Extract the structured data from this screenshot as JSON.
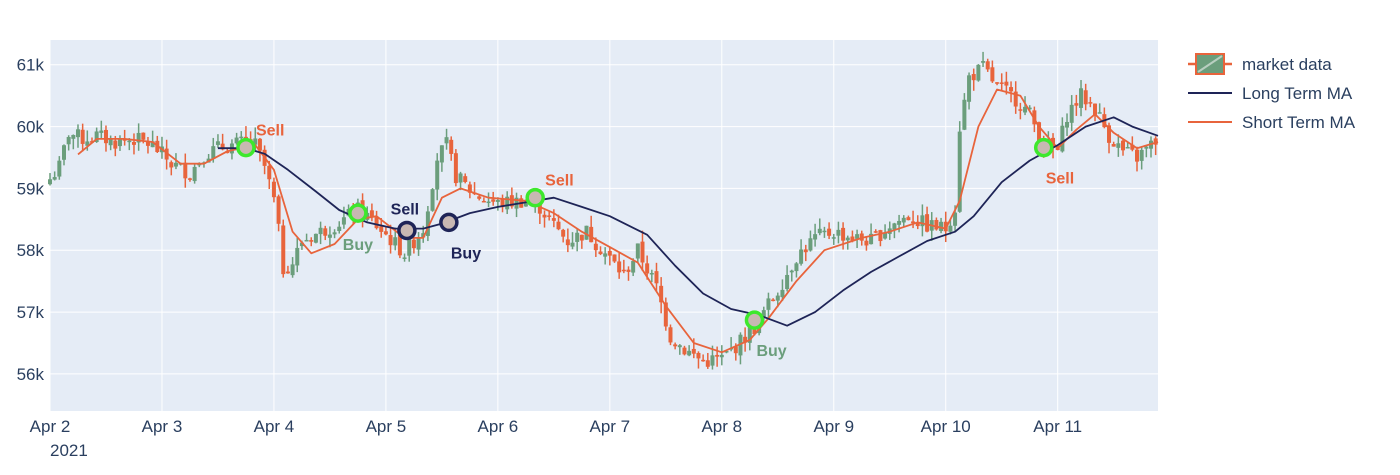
{
  "chart_data": {
    "type": "candlestick",
    "title": "",
    "xlabel": "",
    "ylabel": "",
    "year_label": "2021",
    "x_range": [
      "2021-04-02T00:00",
      "2021-04-11T21:30"
    ],
    "y_range": [
      55400,
      61400
    ],
    "grid": true,
    "legend_position": "top-right",
    "x_ticks": [
      {
        "t": "2021-04-02T00:00",
        "label": "Apr 2"
      },
      {
        "t": "2021-04-03T00:00",
        "label": "Apr 3"
      },
      {
        "t": "2021-04-04T00:00",
        "label": "Apr 4"
      },
      {
        "t": "2021-04-05T00:00",
        "label": "Apr 5"
      },
      {
        "t": "2021-04-06T00:00",
        "label": "Apr 6"
      },
      {
        "t": "2021-04-07T00:00",
        "label": "Apr 7"
      },
      {
        "t": "2021-04-08T00:00",
        "label": "Apr 8"
      },
      {
        "t": "2021-04-09T00:00",
        "label": "Apr 9"
      },
      {
        "t": "2021-04-10T00:00",
        "label": "Apr 10"
      },
      {
        "t": "2021-04-11T00:00",
        "label": "Apr 11"
      }
    ],
    "y_ticks": [
      {
        "v": 56000,
        "label": "56k"
      },
      {
        "v": 57000,
        "label": "57k"
      },
      {
        "v": 58000,
        "label": "58k"
      },
      {
        "v": 59000,
        "label": "59k"
      },
      {
        "v": 60000,
        "label": "60k"
      },
      {
        "v": 61000,
        "label": "61k"
      }
    ],
    "colors": {
      "increasing": "#6b9e7c",
      "decreasing": "#e8643c",
      "long_ma": "#1e2457",
      "short_ma": "#e8643c",
      "marker_green": "#3de82d",
      "marker_fill": "#c8b8b2",
      "marker_navy": "#1e2457",
      "sell_label": "#e8643c",
      "buy_label": "#6b9e7c",
      "navy_label": "#1e2457",
      "plot_bg": "#e5ecf6",
      "grid": "#ffffff"
    },
    "series": [
      {
        "name": "market data",
        "kind": "candlestick"
      },
      {
        "name": "Long Term MA",
        "kind": "line"
      },
      {
        "name": "Short Term MA",
        "kind": "line"
      }
    ],
    "close_path": [
      [
        "2021-04-02T00:00",
        59150
      ],
      [
        "2021-04-02T02:00",
        59350
      ],
      [
        "2021-04-02T04:00",
        59900
      ],
      [
        "2021-04-02T07:00",
        59800
      ],
      [
        "2021-04-02T10:00",
        59850
      ],
      [
        "2021-04-02T14:00",
        59750
      ],
      [
        "2021-04-02T18:00",
        59800
      ],
      [
        "2021-04-02T22:00",
        59700
      ],
      [
        "2021-04-03T02:00",
        59400
      ],
      [
        "2021-04-03T06:00",
        59250
      ],
      [
        "2021-04-03T09:00",
        59550
      ],
      [
        "2021-04-03T12:00",
        59650
      ],
      [
        "2021-04-03T15:00",
        59700
      ],
      [
        "2021-04-03T18:00",
        59750
      ],
      [
        "2021-04-03T20:00",
        59700
      ],
      [
        "2021-04-03T22:00",
        59350
      ],
      [
        "2021-04-04T00:00",
        58800
      ],
      [
        "2021-04-04T01:00",
        58300
      ],
      [
        "2021-04-04T02:00",
        57700
      ],
      [
        "2021-04-04T04:00",
        57800
      ],
      [
        "2021-04-04T06:00",
        58150
      ],
      [
        "2021-04-04T10:00",
        58300
      ],
      [
        "2021-04-04T14:00",
        58450
      ],
      [
        "2021-04-04T18:00",
        58650
      ],
      [
        "2021-04-04T20:00",
        58550
      ],
      [
        "2021-04-05T00:00",
        58250
      ],
      [
        "2021-04-05T04:00",
        57950
      ],
      [
        "2021-04-05T08:00",
        58350
      ],
      [
        "2021-04-05T11:00",
        59500
      ],
      [
        "2021-04-05T13:00",
        59700
      ],
      [
        "2021-04-05T15:00",
        59200
      ],
      [
        "2021-04-05T19:00",
        58900
      ],
      [
        "2021-04-06T00:00",
        58750
      ],
      [
        "2021-04-06T05:00",
        58800
      ],
      [
        "2021-04-06T09:00",
        58700
      ],
      [
        "2021-04-06T12:00",
        58400
      ],
      [
        "2021-04-06T15:00",
        58150
      ],
      [
        "2021-04-06T19:00",
        58300
      ],
      [
        "2021-04-06T23:00",
        57950
      ],
      [
        "2021-04-07T03:00",
        57600
      ],
      [
        "2021-04-07T06:00",
        58000
      ],
      [
        "2021-04-07T10:00",
        57400
      ],
      [
        "2021-04-07T13:00",
        56600
      ],
      [
        "2021-04-07T16:00",
        56400
      ],
      [
        "2021-04-07T20:00",
        56200
      ],
      [
        "2021-04-08T00:00",
        56250
      ],
      [
        "2021-04-08T03:00",
        56450
      ],
      [
        "2021-04-08T07:00",
        56750
      ],
      [
        "2021-04-08T09:00",
        57000
      ],
      [
        "2021-04-08T12:00",
        57350
      ],
      [
        "2021-04-08T16:00",
        57900
      ],
      [
        "2021-04-08T20:00",
        58200
      ],
      [
        "2021-04-09T00:00",
        58300
      ],
      [
        "2021-04-09T04:00",
        58200
      ],
      [
        "2021-04-09T08:00",
        58150
      ],
      [
        "2021-04-09T12:00",
        58400
      ],
      [
        "2021-04-09T16:00",
        58550
      ],
      [
        "2021-04-09T20:00",
        58400
      ],
      [
        "2021-04-10T00:00",
        58350
      ],
      [
        "2021-04-10T02:00",
        58700
      ],
      [
        "2021-04-10T03:00",
        60000
      ],
      [
        "2021-04-10T05:00",
        60800
      ],
      [
        "2021-04-10T08:00",
        60950
      ],
      [
        "2021-04-10T11:00",
        60650
      ],
      [
        "2021-04-10T15:00",
        60450
      ],
      [
        "2021-04-10T18:00",
        60200
      ],
      [
        "2021-04-10T21:00",
        59700
      ],
      [
        "2021-04-11T00:00",
        59600
      ],
      [
        "2021-04-11T02:00",
        60200
      ],
      [
        "2021-04-11T05:00",
        60500
      ],
      [
        "2021-04-11T08:00",
        60300
      ],
      [
        "2021-04-11T11:00",
        59850
      ],
      [
        "2021-04-11T14:00",
        59600
      ],
      [
        "2021-04-11T17:00",
        59500
      ],
      [
        "2021-04-11T21:30",
        59800
      ]
    ],
    "long_ma": [
      [
        "2021-04-03T12:00",
        59650
      ],
      [
        "2021-04-03T18:00",
        59650
      ],
      [
        "2021-04-03T22:00",
        59560
      ],
      [
        "2021-04-04T03:00",
        59300
      ],
      [
        "2021-04-04T09:00",
        58950
      ],
      [
        "2021-04-04T14:00",
        58650
      ],
      [
        "2021-04-04T20:00",
        58450
      ],
      [
        "2021-04-05T02:00",
        58350
      ],
      [
        "2021-04-05T08:00",
        58350
      ],
      [
        "2021-04-05T12:00",
        58430
      ],
      [
        "2021-04-05T18:00",
        58600
      ],
      [
        "2021-04-06T00:00",
        58700
      ],
      [
        "2021-04-06T08:00",
        58800
      ],
      [
        "2021-04-06T12:00",
        58850
      ],
      [
        "2021-04-06T18:00",
        58700
      ],
      [
        "2021-04-07T00:00",
        58550
      ],
      [
        "2021-04-07T08:00",
        58250
      ],
      [
        "2021-04-07T14:00",
        57750
      ],
      [
        "2021-04-07T20:00",
        57300
      ],
      [
        "2021-04-08T02:00",
        57050
      ],
      [
        "2021-04-08T08:00",
        56950
      ],
      [
        "2021-04-08T14:00",
        56780
      ],
      [
        "2021-04-08T20:00",
        57000
      ],
      [
        "2021-04-09T02:00",
        57350
      ],
      [
        "2021-04-09T08:00",
        57650
      ],
      [
        "2021-04-09T14:00",
        57900
      ],
      [
        "2021-04-09T20:00",
        58150
      ],
      [
        "2021-04-10T02:00",
        58300
      ],
      [
        "2021-04-10T06:00",
        58550
      ],
      [
        "2021-04-10T12:00",
        59100
      ],
      [
        "2021-04-10T18:00",
        59450
      ],
      [
        "2021-04-11T00:00",
        59700
      ],
      [
        "2021-04-11T06:00",
        60000
      ],
      [
        "2021-04-11T12:00",
        60150
      ],
      [
        "2021-04-11T16:00",
        60000
      ],
      [
        "2021-04-11T21:30",
        59850
      ]
    ],
    "short_ma": [
      [
        "2021-04-02T06:00",
        59550
      ],
      [
        "2021-04-02T10:00",
        59800
      ],
      [
        "2021-04-02T16:00",
        59800
      ],
      [
        "2021-04-02T22:00",
        59750
      ],
      [
        "2021-04-03T04:00",
        59400
      ],
      [
        "2021-04-03T09:00",
        59400
      ],
      [
        "2021-04-03T14:00",
        59600
      ],
      [
        "2021-04-03T20:00",
        59700
      ],
      [
        "2021-04-04T00:00",
        59300
      ],
      [
        "2021-04-04T04:00",
        58300
      ],
      [
        "2021-04-04T08:00",
        57950
      ],
      [
        "2021-04-04T13:00",
        58100
      ],
      [
        "2021-04-04T18:00",
        58500
      ],
      [
        "2021-04-04T22:00",
        58550
      ],
      [
        "2021-04-05T04:00",
        58200
      ],
      [
        "2021-04-05T08:00",
        58200
      ],
      [
        "2021-04-05T12:00",
        58850
      ],
      [
        "2021-04-05T16:00",
        59000
      ],
      [
        "2021-04-05T22:00",
        58850
      ],
      [
        "2021-04-06T06:00",
        58800
      ],
      [
        "2021-04-06T12:00",
        58600
      ],
      [
        "2021-04-06T18:00",
        58300
      ],
      [
        "2021-04-07T00:00",
        58050
      ],
      [
        "2021-04-07T06:00",
        57800
      ],
      [
        "2021-04-07T12:00",
        57100
      ],
      [
        "2021-04-07T18:00",
        56500
      ],
      [
        "2021-04-08T00:00",
        56350
      ],
      [
        "2021-04-08T06:00",
        56550
      ],
      [
        "2021-04-08T10:00",
        56900
      ],
      [
        "2021-04-08T16:00",
        57500
      ],
      [
        "2021-04-08T22:00",
        58000
      ],
      [
        "2021-04-09T06:00",
        58200
      ],
      [
        "2021-04-09T12:00",
        58300
      ],
      [
        "2021-04-09T18:00",
        58450
      ],
      [
        "2021-04-10T00:00",
        58350
      ],
      [
        "2021-04-10T03:00",
        58800
      ],
      [
        "2021-04-10T07:00",
        60000
      ],
      [
        "2021-04-10T11:00",
        60600
      ],
      [
        "2021-04-10T16:00",
        60500
      ],
      [
        "2021-04-10T20:00",
        60000
      ],
      [
        "2021-04-11T00:00",
        59650
      ],
      [
        "2021-04-11T04:00",
        59950
      ],
      [
        "2021-04-11T08:00",
        60200
      ],
      [
        "2021-04-11T12:00",
        59900
      ],
      [
        "2021-04-11T17:00",
        59650
      ],
      [
        "2021-04-11T21:30",
        59750
      ]
    ],
    "short_signals": [
      {
        "t": "2021-04-03T18:00",
        "y": 59660,
        "label": "Sell",
        "kind": "sell",
        "label_pos": "above-right"
      },
      {
        "t": "2021-04-04T18:00",
        "y": 58600,
        "label": "Buy",
        "kind": "buy",
        "label_pos": "below"
      },
      {
        "t": "2021-04-06T08:00",
        "y": 58850,
        "label": "Sell",
        "kind": "sell",
        "label_pos": "above-right"
      },
      {
        "t": "2021-04-08T07:00",
        "y": 56870,
        "label": "Buy",
        "kind": "buy",
        "label_pos": "below-right"
      },
      {
        "t": "2021-04-10T21:00",
        "y": 59660,
        "label": "Sell",
        "kind": "sell",
        "label_pos": "below-right"
      }
    ],
    "long_signals": [
      {
        "t": "2021-04-05T04:30",
        "y": 58320,
        "label": "Sell",
        "label_pos": "above"
      },
      {
        "t": "2021-04-05T13:30",
        "y": 58450,
        "label": "Buy",
        "label_pos": "below-right"
      }
    ]
  }
}
